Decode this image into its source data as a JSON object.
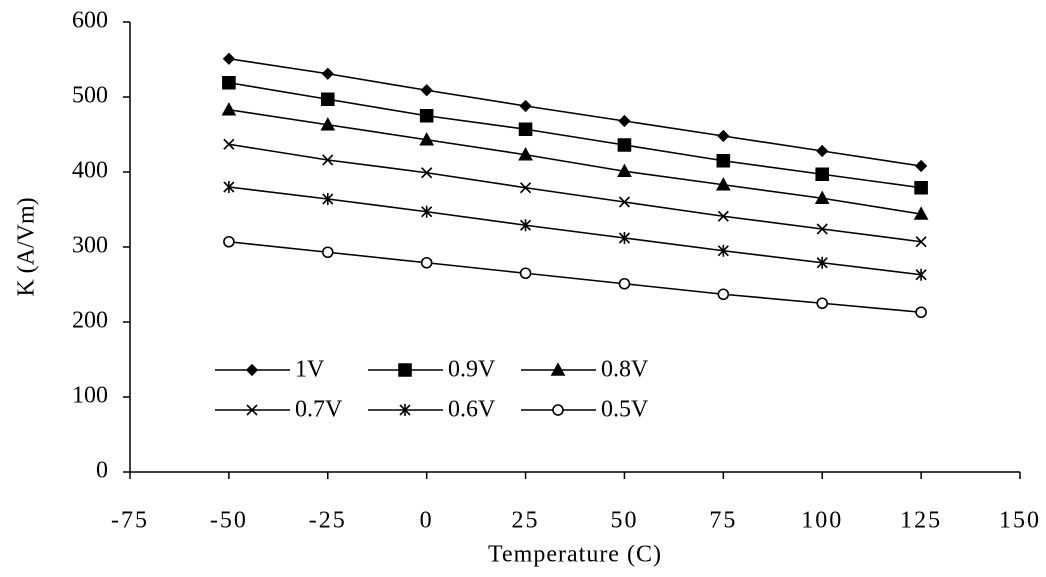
{
  "chart_data": {
    "type": "line",
    "x_label": "Temperature (C)",
    "y_label": "K (A/Vm)",
    "x": [
      -50,
      -25,
      0,
      25,
      50,
      75,
      100,
      125
    ],
    "xlim": [
      -75,
      150
    ],
    "xticks": [
      -75,
      -50,
      -25,
      0,
      25,
      50,
      75,
      100,
      125,
      150
    ],
    "ylim": [
      0,
      600
    ],
    "yticks": [
      0,
      100,
      200,
      300,
      400,
      500,
      600
    ],
    "grid": false,
    "legend": "bottom-left",
    "series": [
      {
        "name": "1V",
        "color": "#000000",
        "marker": "diamond",
        "values": [
          551,
          531,
          509,
          488,
          468,
          448,
          428,
          408
        ]
      },
      {
        "name": "0.9V",
        "color": "#000000",
        "marker": "square",
        "values": [
          519,
          497,
          475,
          457,
          436,
          415,
          397,
          379
        ]
      },
      {
        "name": "0.8V",
        "color": "#000000",
        "marker": "triangle",
        "values": [
          483,
          463,
          443,
          423,
          401,
          383,
          365,
          344
        ]
      },
      {
        "name": "0.7V",
        "color": "#000000",
        "marker": "x",
        "values": [
          437,
          416,
          399,
          379,
          360,
          341,
          324,
          307
        ]
      },
      {
        "name": "0.6V",
        "color": "#000000",
        "marker": "star",
        "values": [
          380,
          364,
          347,
          329,
          312,
          295,
          279,
          263
        ]
      },
      {
        "name": "0.5V",
        "color": "#000000",
        "marker": "circle",
        "values": [
          307,
          293,
          279,
          265,
          251,
          237,
          225,
          213
        ]
      }
    ]
  }
}
